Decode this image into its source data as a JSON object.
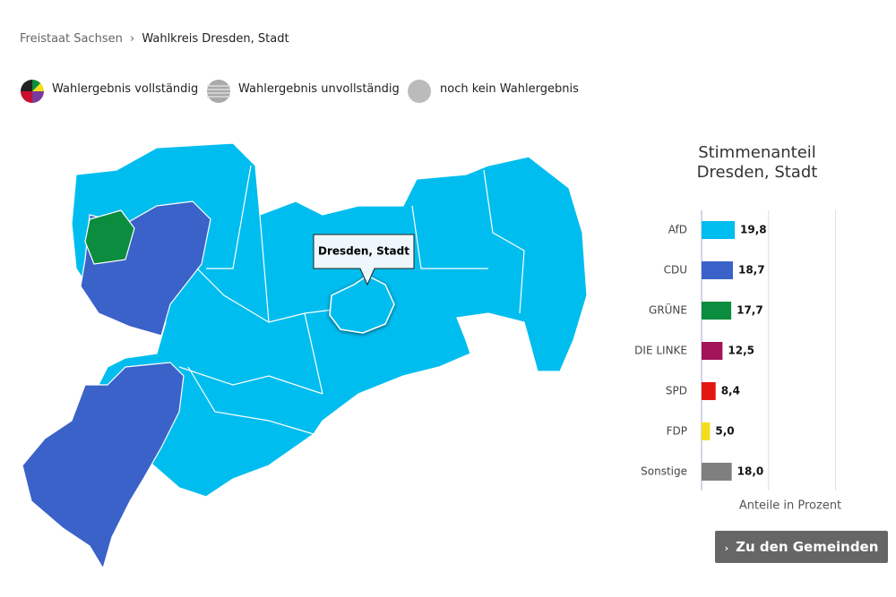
{
  "breadcrumb": [
    "Freistaat Sachsen",
    "Wahlkreis Dresden, Stadt"
  ],
  "legend": [
    "Wahlergebnis vollständig",
    "Wahlergebnis unvollständig",
    "noch kein Wahlergebnis"
  ],
  "map": {
    "tooltip": "Dresden, Stadt"
  },
  "button": "Zu den Gemeinden",
  "chart_data": {
    "type": "hbar",
    "title": "Stimmenanteil Dresden, Stadt",
    "categories": [
      "AfD",
      "CDU",
      "GRÜNE",
      "DIE LINKE",
      "SPD",
      "FDP",
      "Sonstige"
    ],
    "values": [
      19.8,
      18.7,
      17.7,
      12.5,
      8.4,
      5.0,
      18.0
    ],
    "value_labels": [
      "19,8",
      "18,7",
      "17,7",
      "12,5",
      "8,4",
      "5,0",
      "18,0"
    ],
    "colors": [
      "#00bdef",
      "#3a62c8",
      "#0b8c3e",
      "#a3145a",
      "#e3170f",
      "#f3de1b",
      "#7f7f7f"
    ],
    "xlabel": "Anteile in Prozent",
    "xlim": [
      0,
      100
    ],
    "xticks": [
      0,
      40,
      80
    ],
    "grid": true
  }
}
